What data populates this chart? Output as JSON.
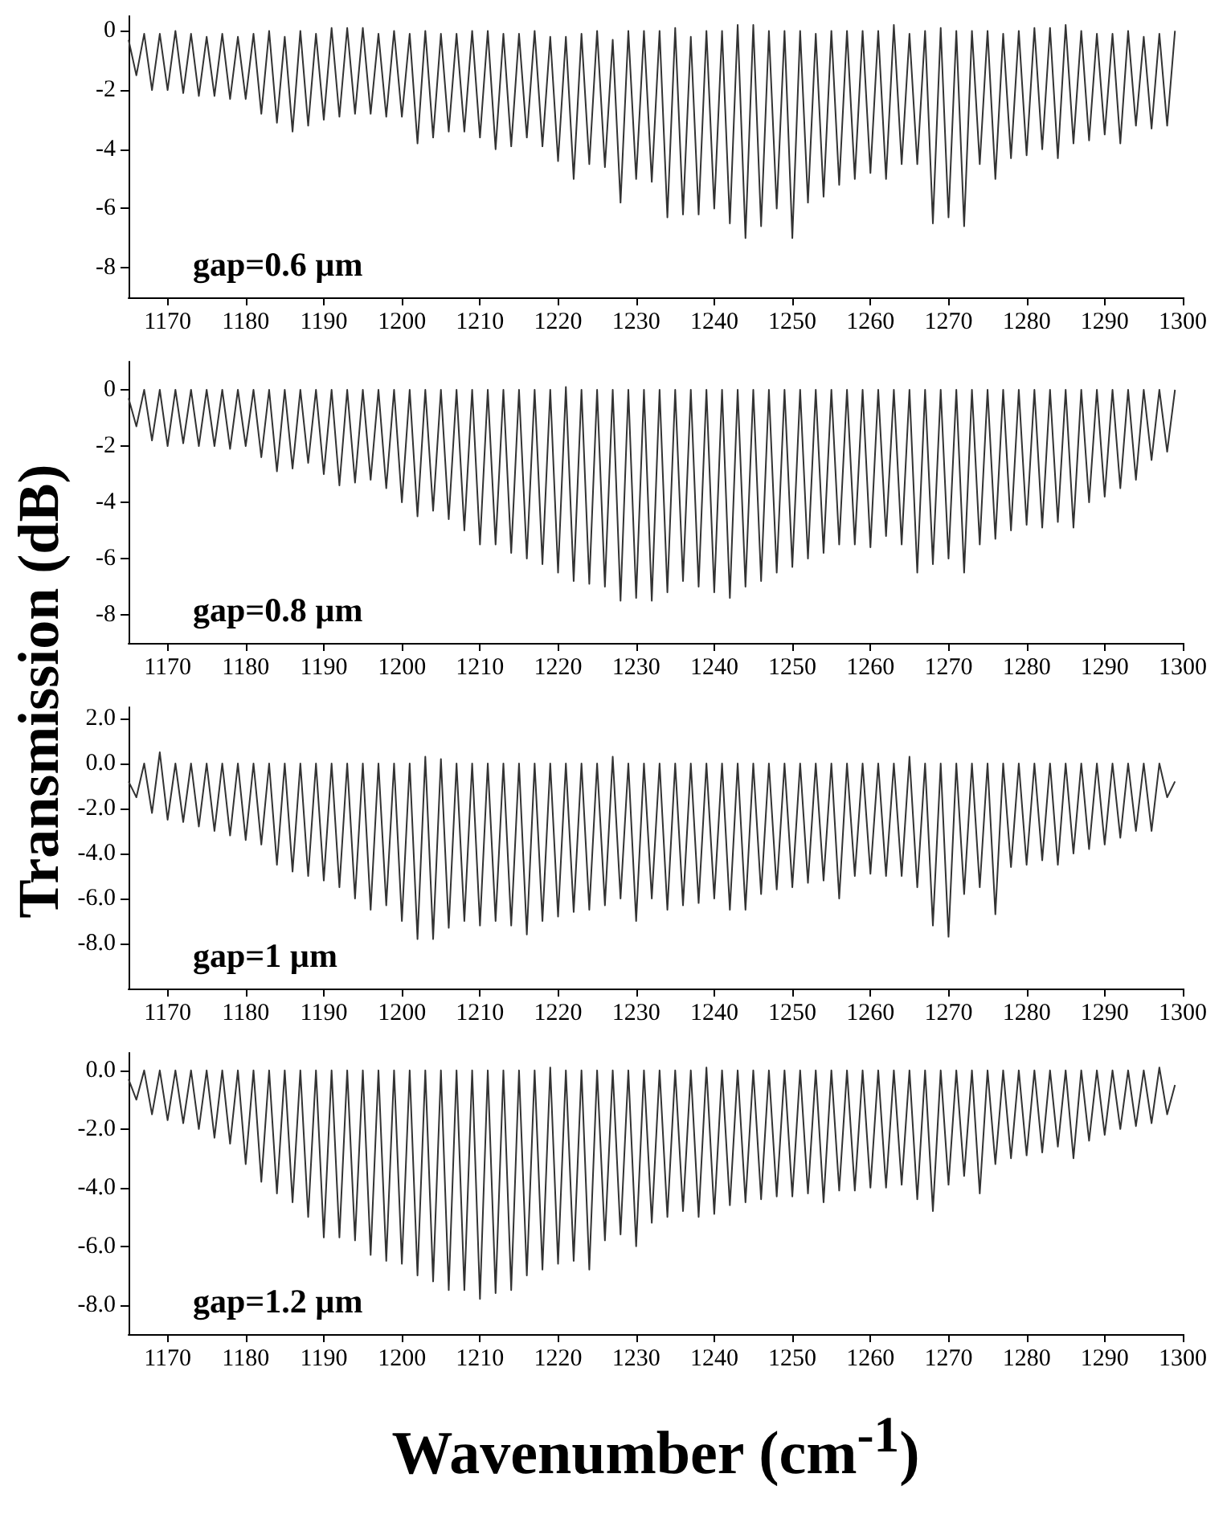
{
  "chart_data": [
    {
      "type": "line",
      "annotations": [
        "gap=0.6 µm"
      ],
      "xlim": [
        1165,
        1300
      ],
      "xticks": [
        1170,
        1180,
        1190,
        1200,
        1210,
        1220,
        1230,
        1240,
        1250,
        1260,
        1270,
        1280,
        1290,
        1300
      ],
      "ylim": [
        -9,
        0.5
      ],
      "yticks": [
        0,
        -2,
        -4,
        -6,
        -8
      ],
      "x": [
        1165,
        1166,
        1167,
        1168,
        1169,
        1170,
        1171,
        1172,
        1173,
        1174,
        1175,
        1176,
        1177,
        1178,
        1179,
        1180,
        1181,
        1182,
        1183,
        1184,
        1185,
        1186,
        1187,
        1188,
        1189,
        1190,
        1191,
        1192,
        1193,
        1194,
        1195,
        1196,
        1197,
        1198,
        1199,
        1200,
        1201,
        1202,
        1203,
        1204,
        1205,
        1206,
        1207,
        1208,
        1209,
        1210,
        1211,
        1212,
        1213,
        1214,
        1215,
        1216,
        1217,
        1218,
        1219,
        1220,
        1221,
        1222,
        1223,
        1224,
        1225,
        1226,
        1227,
        1228,
        1229,
        1230,
        1231,
        1232,
        1233,
        1234,
        1235,
        1236,
        1237,
        1238,
        1239,
        1240,
        1241,
        1242,
        1243,
        1244,
        1245,
        1246,
        1247,
        1248,
        1249,
        1250,
        1251,
        1252,
        1253,
        1254,
        1255,
        1256,
        1257,
        1258,
        1259,
        1260,
        1261,
        1262,
        1263,
        1264,
        1265,
        1266,
        1267,
        1268,
        1269,
        1270,
        1271,
        1272,
        1273,
        1274,
        1275,
        1276,
        1277,
        1278,
        1279,
        1280,
        1281,
        1282,
        1283,
        1284,
        1285,
        1286,
        1287,
        1288,
        1289,
        1290,
        1291,
        1292,
        1293,
        1294,
        1295,
        1296,
        1297,
        1298,
        1299
      ],
      "series": [
        {
          "color": "#333333",
          "values": [
            -0.3,
            -1.5,
            -0.1,
            -2.0,
            -0.1,
            -2.0,
            0,
            -2.1,
            -0.1,
            -2.2,
            -0.2,
            -2.2,
            -0.1,
            -2.3,
            -0.2,
            -2.3,
            -0.1,
            -2.8,
            0,
            -3.1,
            -0.2,
            -3.4,
            0,
            -3.2,
            -0.1,
            -3.0,
            0.1,
            -2.9,
            0.1,
            -2.8,
            0.1,
            -2.8,
            -0.1,
            -2.9,
            0,
            -2.9,
            -0.1,
            -3.8,
            0,
            -3.6,
            -0.1,
            -3.4,
            -0.1,
            -3.4,
            0,
            -3.6,
            0,
            -4.0,
            -0.1,
            -3.9,
            -0.1,
            -3.6,
            0,
            -3.9,
            -0.2,
            -4.4,
            -0.2,
            -5.0,
            -0.1,
            -4.5,
            0,
            -4.6,
            -0.3,
            -5.8,
            0,
            -5.0,
            0,
            -5.1,
            0,
            -6.3,
            0.1,
            -6.2,
            -0.2,
            -6.2,
            0,
            -6.0,
            0,
            -6.5,
            0.2,
            -7.0,
            0.2,
            -6.6,
            0,
            -6.0,
            0,
            -7.0,
            0,
            -5.8,
            -0.1,
            -5.6,
            0,
            -5.2,
            0,
            -5.0,
            0,
            -4.8,
            0,
            -5.0,
            0.2,
            -4.5,
            -0.1,
            -4.5,
            0,
            -6.5,
            0.1,
            -6.3,
            0,
            -6.6,
            0,
            -4.5,
            0,
            -5.0,
            -0.1,
            -4.3,
            0,
            -4.2,
            0.1,
            -4.0,
            0.1,
            -4.3,
            0.2,
            -3.8,
            0,
            -3.7,
            -0.1,
            -3.5,
            -0.1,
            -3.8,
            0,
            -3.2,
            -0.2,
            -3.3,
            -0.1,
            -3.2,
            0
          ]
        }
      ]
    },
    {
      "type": "line",
      "ylabel": "Transmission (dB)",
      "annotations": [
        "gap=0.8 µm"
      ],
      "xlim": [
        1165,
        1300
      ],
      "xticks": [
        1170,
        1180,
        1190,
        1200,
        1210,
        1220,
        1230,
        1240,
        1250,
        1260,
        1270,
        1280,
        1290,
        1300
      ],
      "ylim": [
        -9,
        1
      ],
      "yticks": [
        0,
        -2,
        -4,
        -6,
        -8
      ],
      "x": [
        1165,
        1166,
        1167,
        1168,
        1169,
        1170,
        1171,
        1172,
        1173,
        1174,
        1175,
        1176,
        1177,
        1178,
        1179,
        1180,
        1181,
        1182,
        1183,
        1184,
        1185,
        1186,
        1187,
        1188,
        1189,
        1190,
        1191,
        1192,
        1193,
        1194,
        1195,
        1196,
        1197,
        1198,
        1199,
        1200,
        1201,
        1202,
        1203,
        1204,
        1205,
        1206,
        1207,
        1208,
        1209,
        1210,
        1211,
        1212,
        1213,
        1214,
        1215,
        1216,
        1217,
        1218,
        1219,
        1220,
        1221,
        1222,
        1223,
        1224,
        1225,
        1226,
        1227,
        1228,
        1229,
        1230,
        1231,
        1232,
        1233,
        1234,
        1235,
        1236,
        1237,
        1238,
        1239,
        1240,
        1241,
        1242,
        1243,
        1244,
        1245,
        1246,
        1247,
        1248,
        1249,
        1250,
        1251,
        1252,
        1253,
        1254,
        1255,
        1256,
        1257,
        1258,
        1259,
        1260,
        1261,
        1262,
        1263,
        1264,
        1265,
        1266,
        1267,
        1268,
        1269,
        1270,
        1271,
        1272,
        1273,
        1274,
        1275,
        1276,
        1277,
        1278,
        1279,
        1280,
        1281,
        1282,
        1283,
        1284,
        1285,
        1286,
        1287,
        1288,
        1289,
        1290,
        1291,
        1292,
        1293,
        1294,
        1295,
        1296,
        1297,
        1298,
        1299
      ],
      "series": [
        {
          "color": "#333333",
          "values": [
            -0.3,
            -1.3,
            0,
            -1.8,
            0,
            -2.0,
            0,
            -1.9,
            0,
            -2.0,
            0,
            -2.0,
            0,
            -2.1,
            0,
            -2.0,
            0,
            -2.4,
            0,
            -2.9,
            0,
            -2.8,
            0,
            -2.6,
            0,
            -3.0,
            0,
            -3.4,
            0,
            -3.3,
            0,
            -3.2,
            0,
            -3.5,
            0,
            -4.0,
            0,
            -4.5,
            0,
            -4.3,
            0,
            -4.6,
            0,
            -5.0,
            0,
            -5.5,
            0,
            -5.5,
            0,
            -5.8,
            0,
            -6.0,
            0,
            -6.2,
            0,
            -6.5,
            0.1,
            -6.8,
            0,
            -6.9,
            0,
            -7.0,
            0,
            -7.5,
            0,
            -7.4,
            0,
            -7.5,
            0,
            -7.2,
            0,
            -6.8,
            0,
            -7.0,
            0,
            -7.2,
            0,
            -7.4,
            0,
            -7.0,
            0,
            -6.8,
            0,
            -6.5,
            0,
            -6.3,
            0,
            -6.0,
            0,
            -5.8,
            0,
            -5.5,
            0,
            -5.5,
            0,
            -5.6,
            0,
            -5.2,
            0,
            -5.5,
            0,
            -6.5,
            0,
            -6.2,
            0,
            -6.0,
            0,
            -6.5,
            0,
            -5.5,
            0,
            -5.3,
            0,
            -5.0,
            0,
            -4.8,
            0,
            -4.9,
            0,
            -4.7,
            0,
            -4.9,
            0,
            -4.0,
            0,
            -3.8,
            0,
            -3.5,
            0,
            -3.2,
            0,
            -2.5,
            0,
            -2.2,
            0
          ]
        }
      ]
    },
    {
      "type": "line",
      "annotations": [
        "gap=1 µm"
      ],
      "xlim": [
        1165,
        1300
      ],
      "xticks": [
        1170,
        1180,
        1190,
        1200,
        1210,
        1220,
        1230,
        1240,
        1250,
        1260,
        1270,
        1280,
        1290,
        1300
      ],
      "ylim": [
        -10,
        2.5
      ],
      "yticks": [
        {
          "value": 2,
          "label": "2.0"
        },
        {
          "value": 0,
          "label": "0.0"
        },
        {
          "value": -2,
          "label": "-2.0"
        },
        {
          "value": -4,
          "label": "-4.0"
        },
        {
          "value": -6,
          "label": "-6.0"
        },
        {
          "value": -8,
          "label": "-8.0"
        }
      ],
      "x": [
        1165,
        1166,
        1167,
        1168,
        1169,
        1170,
        1171,
        1172,
        1173,
        1174,
        1175,
        1176,
        1177,
        1178,
        1179,
        1180,
        1181,
        1182,
        1183,
        1184,
        1185,
        1186,
        1187,
        1188,
        1189,
        1190,
        1191,
        1192,
        1193,
        1194,
        1195,
        1196,
        1197,
        1198,
        1199,
        1200,
        1201,
        1202,
        1203,
        1204,
        1205,
        1206,
        1207,
        1208,
        1209,
        1210,
        1211,
        1212,
        1213,
        1214,
        1215,
        1216,
        1217,
        1218,
        1219,
        1220,
        1221,
        1222,
        1223,
        1224,
        1225,
        1226,
        1227,
        1228,
        1229,
        1230,
        1231,
        1232,
        1233,
        1234,
        1235,
        1236,
        1237,
        1238,
        1239,
        1240,
        1241,
        1242,
        1243,
        1244,
        1245,
        1246,
        1247,
        1248,
        1249,
        1250,
        1251,
        1252,
        1253,
        1254,
        1255,
        1256,
        1257,
        1258,
        1259,
        1260,
        1261,
        1262,
        1263,
        1264,
        1265,
        1266,
        1267,
        1268,
        1269,
        1270,
        1271,
        1272,
        1273,
        1274,
        1275,
        1276,
        1277,
        1278,
        1279,
        1280,
        1281,
        1282,
        1283,
        1284,
        1285,
        1286,
        1287,
        1288,
        1289,
        1290,
        1291,
        1292,
        1293,
        1294,
        1295,
        1296,
        1297,
        1298,
        1299
      ],
      "series": [
        {
          "color": "#333333",
          "values": [
            -0.8,
            -1.5,
            0,
            -2.2,
            0.5,
            -2.5,
            0,
            -2.6,
            0,
            -2.8,
            0,
            -3.0,
            0,
            -3.2,
            0,
            -3.4,
            0,
            -3.6,
            0,
            -4.5,
            0,
            -4.8,
            0,
            -5.0,
            0,
            -5.2,
            0,
            -5.5,
            0,
            -6.0,
            0,
            -6.5,
            0,
            -6.3,
            0,
            -7.0,
            0,
            -7.8,
            0.3,
            -7.8,
            0.2,
            -7.3,
            0,
            -7.0,
            0,
            -7.2,
            0,
            -7.0,
            0,
            -7.2,
            0,
            -7.6,
            0,
            -7.0,
            0,
            -6.8,
            0,
            -6.6,
            0,
            -6.5,
            0,
            -6.3,
            0.3,
            -6.0,
            0,
            -7.0,
            0,
            -6.0,
            0,
            -6.5,
            0,
            -6.3,
            0,
            -6.2,
            0,
            -6.0,
            0,
            -6.5,
            0,
            -6.5,
            0,
            -5.8,
            0,
            -5.6,
            0,
            -5.5,
            0,
            -5.3,
            0,
            -5.2,
            0,
            -6.0,
            0,
            -5.0,
            0,
            -4.9,
            0,
            -5.0,
            0,
            -5.0,
            0.3,
            -5.5,
            0,
            -7.2,
            0,
            -7.7,
            0,
            -5.8,
            0,
            -5.5,
            0,
            -6.7,
            0,
            -4.6,
            0,
            -4.5,
            0,
            -4.3,
            0,
            -4.5,
            0,
            -4.0,
            0,
            -3.8,
            0,
            -3.6,
            0,
            -3.3,
            0,
            -3.0,
            0,
            -3.0,
            0,
            -1.5,
            -0.8
          ]
        }
      ]
    },
    {
      "type": "line",
      "xlabel": "Wavenumber (cm$^{-1}$)",
      "annotations": [
        "gap=1.2 µm"
      ],
      "xlim": [
        1165,
        1300
      ],
      "xticks": [
        1170,
        1180,
        1190,
        1200,
        1210,
        1220,
        1230,
        1240,
        1250,
        1260,
        1270,
        1280,
        1290,
        1300
      ],
      "ylim": [
        -9,
        0.6
      ],
      "yticks": [
        {
          "value": 0,
          "label": "0.0"
        },
        {
          "value": -2,
          "label": "-2.0"
        },
        {
          "value": -4,
          "label": "-4.0"
        },
        {
          "value": -6,
          "label": "-6.0"
        },
        {
          "value": -8,
          "label": "-8.0"
        }
      ],
      "x": [
        1165,
        1166,
        1167,
        1168,
        1169,
        1170,
        1171,
        1172,
        1173,
        1174,
        1175,
        1176,
        1177,
        1178,
        1179,
        1180,
        1181,
        1182,
        1183,
        1184,
        1185,
        1186,
        1187,
        1188,
        1189,
        1190,
        1191,
        1192,
        1193,
        1194,
        1195,
        1196,
        1197,
        1198,
        1199,
        1200,
        1201,
        1202,
        1203,
        1204,
        1205,
        1206,
        1207,
        1208,
        1209,
        1210,
        1211,
        1212,
        1213,
        1214,
        1215,
        1216,
        1217,
        1218,
        1219,
        1220,
        1221,
        1222,
        1223,
        1224,
        1225,
        1226,
        1227,
        1228,
        1229,
        1230,
        1231,
        1232,
        1233,
        1234,
        1235,
        1236,
        1237,
        1238,
        1239,
        1240,
        1241,
        1242,
        1243,
        1244,
        1245,
        1246,
        1247,
        1248,
        1249,
        1250,
        1251,
        1252,
        1253,
        1254,
        1255,
        1256,
        1257,
        1258,
        1259,
        1260,
        1261,
        1262,
        1263,
        1264,
        1265,
        1266,
        1267,
        1268,
        1269,
        1270,
        1271,
        1272,
        1273,
        1274,
        1275,
        1276,
        1277,
        1278,
        1279,
        1280,
        1281,
        1282,
        1283,
        1284,
        1285,
        1286,
        1287,
        1288,
        1289,
        1290,
        1291,
        1292,
        1293,
        1294,
        1295,
        1296,
        1297,
        1298,
        1299
      ],
      "series": [
        {
          "color": "#333333",
          "values": [
            -0.3,
            -1.0,
            0,
            -1.5,
            0,
            -1.7,
            0,
            -1.8,
            0,
            -2.0,
            0,
            -2.3,
            0,
            -2.5,
            0,
            -3.2,
            0,
            -3.8,
            0,
            -4.2,
            0,
            -4.5,
            0,
            -5.0,
            0,
            -5.7,
            0,
            -5.7,
            0,
            -5.8,
            0,
            -6.3,
            0,
            -6.5,
            0,
            -6.6,
            0,
            -7.0,
            0,
            -7.2,
            0,
            -7.5,
            0,
            -7.5,
            0,
            -7.8,
            0,
            -7.6,
            0,
            -7.5,
            0,
            -7.0,
            0,
            -6.8,
            0.1,
            -6.6,
            0,
            -6.5,
            0,
            -6.8,
            0,
            -5.8,
            0,
            -5.6,
            0,
            -6.0,
            0,
            -5.2,
            0,
            -5.0,
            0,
            -4.8,
            0,
            -5.0,
            0.1,
            -4.9,
            0,
            -4.6,
            0,
            -4.5,
            0,
            -4.4,
            0,
            -4.3,
            0,
            -4.3,
            0,
            -4.2,
            0,
            -4.5,
            0,
            -4.1,
            0,
            -4.1,
            0,
            -4.0,
            0,
            -4.0,
            0,
            -3.9,
            0,
            -4.4,
            0,
            -4.8,
            0,
            -3.9,
            0,
            -3.6,
            0,
            -4.2,
            0,
            -3.2,
            0,
            -3.0,
            0,
            -2.9,
            0,
            -2.8,
            0,
            -2.6,
            0,
            -3.0,
            0,
            -2.4,
            0,
            -2.2,
            0,
            -2.0,
            0,
            -1.9,
            0,
            -1.8,
            0.1,
            -1.5,
            -0.5
          ]
        }
      ]
    }
  ]
}
